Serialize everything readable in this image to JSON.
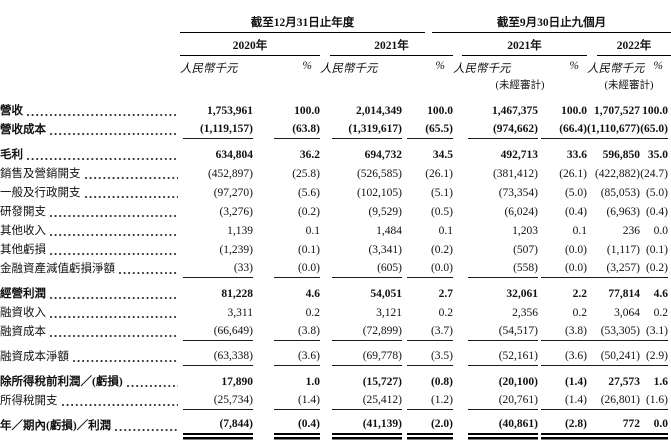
{
  "table": {
    "header": {
      "period_annual": "截至12月31日止年度",
      "period_interim": "截至9月30日止九個月",
      "years": [
        "2020年",
        "2021年",
        "2021年",
        "2022年"
      ],
      "amount_label": "人民幣千元",
      "pct_label": "%",
      "unaudited": "(未經審計)"
    },
    "rows": [
      {
        "label": "營收",
        "bold": true,
        "gap_before": false,
        "rule": "none",
        "values": [
          "1,753,961",
          "100.0",
          "2,014,349",
          "100.0",
          "1,467,375",
          "100.0",
          "1,707,527",
          "100.0"
        ]
      },
      {
        "label": "營收成本",
        "bold": true,
        "gap_before": false,
        "rule": "single",
        "values": [
          "(1,119,157)",
          "(63.8)",
          "(1,319,617)",
          "(65.5)",
          "(974,662)",
          "(66.4)",
          "(1,110,677)",
          "(65.0)"
        ]
      },
      {
        "label": "毛利",
        "bold": true,
        "gap_before": true,
        "rule": "none",
        "values": [
          "634,804",
          "36.2",
          "694,732",
          "34.5",
          "492,713",
          "33.6",
          "596,850",
          "35.0"
        ]
      },
      {
        "label": "銷售及營銷開支",
        "bold": false,
        "gap_before": false,
        "rule": "none",
        "values": [
          "(452,897)",
          "(25.8)",
          "(526,585)",
          "(26.1)",
          "(381,412)",
          "(26.1)",
          "(422,882)",
          "(24.7)"
        ]
      },
      {
        "label": "一般及行政開支",
        "bold": false,
        "gap_before": false,
        "rule": "none",
        "values": [
          "(97,270)",
          "(5.6)",
          "(102,105)",
          "(5.1)",
          "(73,354)",
          "(5.0)",
          "(85,053)",
          "(5.0)"
        ]
      },
      {
        "label": "研發開支",
        "bold": false,
        "gap_before": false,
        "rule": "none",
        "values": [
          "(3,276)",
          "(0.2)",
          "(9,529)",
          "(0.5)",
          "(6,024)",
          "(0.4)",
          "(6,963)",
          "(0.4)"
        ]
      },
      {
        "label": "其他收入",
        "bold": false,
        "gap_before": false,
        "rule": "none",
        "values": [
          "1,139",
          "0.1",
          "1,484",
          "0.1",
          "1,203",
          "0.1",
          "236",
          "0.0"
        ]
      },
      {
        "label": "其他虧損",
        "bold": false,
        "gap_before": false,
        "rule": "none",
        "values": [
          "(1,239)",
          "(0.1)",
          "(3,341)",
          "(0.2)",
          "(507)",
          "(0.0)",
          "(1,117)",
          "(0.1)"
        ]
      },
      {
        "label": "金融資產減值虧損淨額",
        "bold": false,
        "gap_before": false,
        "rule": "single",
        "values": [
          "(33)",
          "(0.0)",
          "(605)",
          "(0.0)",
          "(558)",
          "(0.0)",
          "(3,257)",
          "(0.2)"
        ]
      },
      {
        "label": "經營利潤",
        "bold": true,
        "gap_before": true,
        "rule": "none",
        "values": [
          "81,228",
          "4.6",
          "54,051",
          "2.7",
          "32,061",
          "2.2",
          "77,814",
          "4.6"
        ]
      },
      {
        "label": "融資收入",
        "bold": false,
        "gap_before": false,
        "rule": "none",
        "values": [
          "3,311",
          "0.2",
          "3,121",
          "0.2",
          "2,356",
          "0.2",
          "3,064",
          "0.2"
        ]
      },
      {
        "label": "融資成本",
        "bold": false,
        "gap_before": false,
        "rule": "single",
        "values": [
          "(66,649)",
          "(3.8)",
          "(72,899)",
          "(3.7)",
          "(54,517)",
          "(3.8)",
          "(53,305)",
          "(3.1)"
        ]
      },
      {
        "label": "融資成本淨額",
        "bold": false,
        "gap_before": true,
        "rule": "single",
        "values": [
          "(63,338)",
          "(3.6)",
          "(69,778)",
          "(3.5)",
          "(52,161)",
          "(3.6)",
          "(50,241)",
          "(2.9)"
        ]
      },
      {
        "label": "除所得稅前利潤／(虧損)",
        "bold": true,
        "gap_before": true,
        "rule": "none",
        "values": [
          "17,890",
          "1.0",
          "(15,727)",
          "(0.8)",
          "(20,100)",
          "(1.4)",
          "27,573",
          "1.6"
        ]
      },
      {
        "label": "所得稅開支",
        "bold": false,
        "gap_before": false,
        "rule": "single",
        "values": [
          "(25,734)",
          "(1.4)",
          "(25,412)",
          "(1.2)",
          "(20,761)",
          "(1.4)",
          "(26,801)",
          "(1.6)"
        ]
      },
      {
        "label": "年／期內(虧損)／利潤",
        "bold": true,
        "gap_before": true,
        "rule": "double",
        "values": [
          "(7,844)",
          "(0.4)",
          "(41,139)",
          "(2.0)",
          "(40,861)",
          "(2.8)",
          "772",
          "0.0"
        ]
      }
    ]
  }
}
